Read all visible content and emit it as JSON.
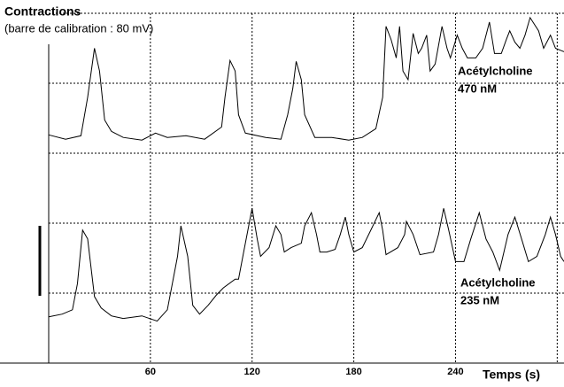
{
  "chart_data": {
    "type": "line",
    "title": "Contractions",
    "subtitle": "(barre de calibration : 80 mV)",
    "x_label": "Temps (s)",
    "xlim": [
      0,
      304
    ],
    "xticks": [
      60,
      120,
      180,
      240
    ],
    "xgrid": [
      60,
      120,
      180,
      240,
      300
    ],
    "ylim": [
      0,
      400
    ],
    "ygrid": [
      80,
      160,
      240,
      320,
      400
    ],
    "grid": true,
    "annotations": [
      "Acétylcholine",
      "470 nM",
      "Acétylcholine",
      "235 nM"
    ],
    "series": [
      {
        "color": "#000000",
        "x": [
          0,
          10,
          19,
          23,
          27,
          30,
          33,
          37,
          44,
          55,
          63,
          70,
          81,
          92,
          102,
          104,
          107,
          110,
          112,
          116,
          128,
          137,
          141,
          144,
          146,
          149,
          151,
          157,
          167,
          177,
          185,
          193,
          197,
          199,
          202,
          205,
          207,
          209,
          212,
          215,
          218,
          220,
          223,
          225,
          228,
          232,
          235,
          237,
          241,
          244,
          247,
          252,
          256,
          260,
          263,
          267,
          270,
          272,
          275,
          278,
          281,
          284,
          289,
          292,
          296,
          299,
          304
        ],
        "values": [
          261,
          256,
          260,
          304,
          360,
          334,
          278,
          265,
          258,
          255,
          263,
          258,
          260,
          256,
          270,
          304,
          346,
          334,
          284,
          263,
          258,
          256,
          284,
          314,
          345,
          324,
          284,
          258,
          258,
          255,
          258,
          268,
          304,
          385,
          370,
          349,
          385,
          334,
          324,
          377,
          354,
          360,
          375,
          334,
          342,
          385,
          360,
          349,
          375,
          360,
          349,
          349,
          360,
          390,
          354,
          354,
          370,
          380,
          367,
          360,
          375,
          395,
          380,
          360,
          375,
          360,
          356
        ]
      },
      {
        "color": "#000000",
        "x": [
          0,
          8,
          14,
          17,
          20,
          23,
          27,
          31,
          37,
          44,
          55,
          64,
          70,
          76,
          78,
          82,
          85,
          89,
          94,
          99,
          103,
          110,
          112,
          115,
          120,
          123,
          125,
          130,
          134,
          137,
          139,
          143,
          149,
          151,
          155,
          158,
          160,
          164,
          169,
          172,
          175,
          177,
          180,
          185,
          190,
          195,
          197,
          199,
          206,
          210,
          211,
          215,
          219,
          227,
          230,
          233,
          236,
          240,
          245,
          249,
          254,
          258,
          262,
          266,
          271,
          275,
          279,
          283,
          288,
          293,
          296,
          299,
          302,
          304
        ],
        "values": [
          53,
          56,
          61,
          91,
          152,
          142,
          76,
          63,
          54,
          51,
          54,
          48,
          61,
          122,
          157,
          122,
          66,
          56,
          66,
          78,
          86,
          96,
          96,
          127,
          177,
          142,
          122,
          132,
          157,
          147,
          127,
          132,
          137,
          157,
          172,
          147,
          127,
          127,
          130,
          147,
          167,
          147,
          127,
          132,
          152,
          172,
          152,
          124,
          132,
          147,
          162,
          147,
          124,
          127,
          147,
          177,
          152,
          116,
          116,
          142,
          172,
          142,
          127,
          106,
          147,
          167,
          142,
          116,
          122,
          147,
          167,
          147,
          122,
          116
        ]
      }
    ]
  }
}
